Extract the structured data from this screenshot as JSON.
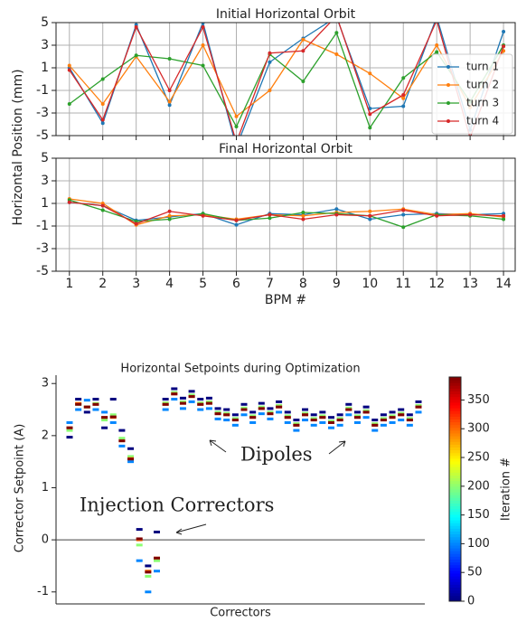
{
  "chart_data": [
    {
      "type": "line",
      "title": "Initial Horizontal Orbit",
      "ylabel": "Horizontal Position (mm)",
      "x": [
        1,
        2,
        3,
        4,
        5,
        6,
        7,
        8,
        9,
        10,
        11,
        12,
        13,
        14
      ],
      "xlim": [
        0.6,
        14.35
      ],
      "xticks": [
        1,
        2,
        3,
        4,
        5,
        6,
        7,
        8,
        9,
        10,
        11,
        12,
        13,
        14
      ],
      "ylim": [
        -5,
        5
      ],
      "yticks": [
        -5,
        -3,
        -1,
        1,
        3,
        5
      ],
      "grid": true,
      "legend": "upper right",
      "series": [
        {
          "name": "turn 1",
          "color": "#1f77b4",
          "values": [
            1.0,
            -3.9,
            4.8,
            -2.3,
            5.0,
            -6.0,
            1.5,
            3.6,
            5.5,
            -2.6,
            -2.4,
            5.5,
            -4.5,
            4.2
          ]
        },
        {
          "name": "turn 2",
          "color": "#ff7f0e",
          "values": [
            1.2,
            -2.2,
            2.0,
            -2.0,
            3.0,
            -3.3,
            -1.0,
            3.5,
            2.2,
            0.5,
            -1.7,
            3.0,
            -2.5,
            2.5
          ]
        },
        {
          "name": "turn 3",
          "color": "#2ca02c",
          "values": [
            -2.2,
            0.0,
            2.1,
            1.8,
            1.2,
            -4.2,
            2.2,
            -0.2,
            4.1,
            -4.3,
            0.1,
            2.4,
            -2.0,
            3.0
          ]
        },
        {
          "name": "turn 4",
          "color": "#d62728",
          "values": [
            0.8,
            -3.6,
            4.6,
            -1.0,
            4.6,
            -5.6,
            2.3,
            2.5,
            5.6,
            -3.1,
            -1.4,
            5.2,
            -5.2,
            2.9
          ]
        }
      ]
    },
    {
      "type": "line",
      "title": "Final Horizontal Orbit",
      "xlabel": "BPM #",
      "x": [
        1,
        2,
        3,
        4,
        5,
        6,
        7,
        8,
        9,
        10,
        11,
        12,
        13,
        14
      ],
      "xlim": [
        0.6,
        14.35
      ],
      "xticks": [
        1,
        2,
        3,
        4,
        5,
        6,
        7,
        8,
        9,
        10,
        11,
        12,
        13,
        14
      ],
      "ylim": [
        -5,
        5
      ],
      "yticks": [
        -5,
        -3,
        -1,
        1,
        3,
        5
      ],
      "grid": true,
      "series": [
        {
          "color": "#1f77b4",
          "values": [
            1.1,
            0.8,
            -0.5,
            -0.2,
            0.1,
            -0.9,
            0.1,
            0.0,
            0.5,
            -0.4,
            0.0,
            0.1,
            0.0,
            0.1
          ]
        },
        {
          "color": "#ff7f0e",
          "values": [
            1.4,
            1.0,
            -0.9,
            -0.1,
            0.0,
            -0.4,
            0.0,
            -0.1,
            0.2,
            0.3,
            0.5,
            0.0,
            0.1,
            -0.2
          ]
        },
        {
          "color": "#2ca02c",
          "values": [
            1.3,
            0.4,
            -0.6,
            -0.4,
            0.1,
            -0.5,
            -0.3,
            0.2,
            0.1,
            -0.1,
            -1.1,
            0.0,
            -0.1,
            -0.4
          ]
        },
        {
          "color": "#d62728",
          "values": [
            1.1,
            0.8,
            -0.8,
            0.3,
            -0.1,
            -0.5,
            0.0,
            -0.4,
            0.0,
            -0.1,
            0.4,
            -0.1,
            0.0,
            -0.1
          ]
        }
      ]
    },
    {
      "type": "strip",
      "title": "Horizontal Setpoints during Optimization",
      "xlabel": "Correctors",
      "ylabel": "Corrector Setpoint (A)",
      "ylim": [
        -1.23,
        3.16
      ],
      "yticks": [
        -1,
        0,
        1,
        2,
        3
      ],
      "reference_line": 0,
      "colorbar_label": "Iteration #",
      "clim": [
        0,
        390
      ],
      "colorbar_ticks": [
        0,
        50,
        100,
        150,
        200,
        250,
        300,
        350
      ],
      "colormap": [
        "#00007f",
        "#0000ff",
        "#007fff",
        "#00ffff",
        "#7fff7f",
        "#ffff00",
        "#ff7f00",
        "#ff0000",
        "#7f0000"
      ],
      "iterations": [
        0,
        100,
        200,
        300,
        390
      ],
      "annotations": [
        "Dipoles",
        "Injection Correctors"
      ],
      "correctors": [
        [
          1.97,
          2.25,
          2.1,
          2.15,
          2.15
        ],
        [
          2.7,
          2.5,
          2.6,
          2.62,
          2.6
        ],
        [
          2.45,
          2.68,
          2.55,
          2.55,
          2.55
        ],
        [
          2.7,
          2.5,
          2.62,
          2.6,
          2.6
        ],
        [
          2.15,
          2.45,
          2.3,
          2.35,
          2.35
        ],
        [
          2.7,
          2.25,
          2.4,
          2.35,
          2.36
        ],
        [
          2.1,
          1.8,
          1.95,
          1.9,
          1.9
        ],
        [
          1.75,
          1.5,
          1.6,
          1.56,
          1.55
        ],
        [
          0.2,
          -0.4,
          -0.1,
          0.0,
          0.02
        ],
        [
          -0.5,
          -1.0,
          -0.7,
          -0.6,
          -0.62
        ],
        [
          0.15,
          -0.6,
          -0.4,
          -0.35,
          -0.35
        ],
        [
          2.7,
          2.5,
          2.63,
          2.6,
          2.6
        ],
        [
          2.9,
          2.7,
          2.83,
          2.8,
          2.8
        ],
        [
          2.72,
          2.52,
          2.65,
          2.62,
          2.62
        ],
        [
          2.85,
          2.65,
          2.78,
          2.75,
          2.75
        ],
        [
          2.7,
          2.5,
          2.63,
          2.6,
          2.6
        ],
        [
          2.72,
          2.52,
          2.65,
          2.62,
          2.62
        ],
        [
          2.52,
          2.32,
          2.45,
          2.42,
          2.42
        ],
        [
          2.5,
          2.3,
          2.43,
          2.4,
          2.4
        ],
        [
          2.4,
          2.2,
          2.33,
          2.3,
          2.3
        ],
        [
          2.6,
          2.4,
          2.53,
          2.5,
          2.5
        ],
        [
          2.45,
          2.25,
          2.38,
          2.35,
          2.35
        ],
        [
          2.62,
          2.42,
          2.55,
          2.52,
          2.52
        ],
        [
          2.52,
          2.32,
          2.45,
          2.42,
          2.42
        ],
        [
          2.65,
          2.45,
          2.58,
          2.55,
          2.55
        ],
        [
          2.45,
          2.25,
          2.38,
          2.35,
          2.35
        ],
        [
          2.3,
          2.1,
          2.23,
          2.2,
          2.2
        ],
        [
          2.5,
          2.3,
          2.43,
          2.4,
          2.4
        ],
        [
          2.4,
          2.2,
          2.33,
          2.3,
          2.3
        ],
        [
          2.45,
          2.25,
          2.38,
          2.35,
          2.35
        ],
        [
          2.35,
          2.15,
          2.28,
          2.25,
          2.25
        ],
        [
          2.4,
          2.2,
          2.33,
          2.3,
          2.3
        ],
        [
          2.6,
          2.4,
          2.53,
          2.5,
          2.5
        ],
        [
          2.45,
          2.25,
          2.38,
          2.35,
          2.35
        ],
        [
          2.55,
          2.35,
          2.48,
          2.45,
          2.45
        ],
        [
          2.3,
          2.1,
          2.23,
          2.2,
          2.2
        ],
        [
          2.4,
          2.2,
          2.33,
          2.3,
          2.3
        ],
        [
          2.45,
          2.25,
          2.38,
          2.35,
          2.35
        ],
        [
          2.5,
          2.3,
          2.43,
          2.4,
          2.4
        ],
        [
          2.4,
          2.2,
          2.33,
          2.3,
          2.3
        ],
        [
          2.65,
          2.45,
          2.58,
          2.55,
          2.55
        ]
      ]
    }
  ]
}
